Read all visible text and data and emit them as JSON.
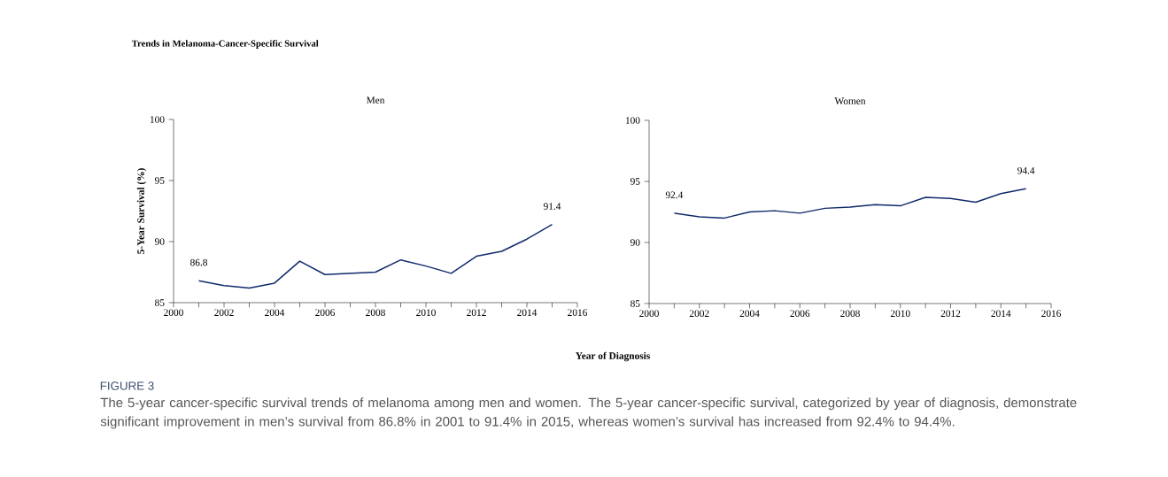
{
  "chart_data": [
    {
      "type": "line",
      "title": "Men",
      "xlabel": "Year of Diagnosis",
      "ylabel": "5-Year Survival (%)",
      "x": [
        2001,
        2002,
        2003,
        2004,
        2005,
        2006,
        2007,
        2008,
        2009,
        2010,
        2011,
        2012,
        2013,
        2014,
        2015
      ],
      "series": [
        {
          "color": "#0f2a6b",
          "values": [
            86.8,
            86.4,
            86.2,
            86.6,
            88.4,
            87.3,
            87.4,
            87.5,
            88.5,
            88.0,
            87.4,
            88.8,
            89.2,
            90.2,
            91.4
          ],
          "value_labels": [
            "86.8",
            null,
            null,
            null,
            null,
            null,
            null,
            null,
            null,
            null,
            null,
            null,
            null,
            null,
            "91.4"
          ]
        }
      ],
      "xlim": [
        2000,
        2016
      ],
      "ylim": [
        85,
        100
      ],
      "xticks": [
        2000,
        {
          "value": 2001,
          "label": null
        },
        2002,
        {
          "value": 2003,
          "label": null
        },
        2004,
        {
          "value": 2005,
          "label": null
        },
        2006,
        {
          "value": 2007,
          "label": null
        },
        2008,
        {
          "value": 2009,
          "label": null
        },
        2010,
        {
          "value": 2011,
          "label": null
        },
        2012,
        {
          "value": 2013,
          "label": null
        },
        2014,
        {
          "value": 2015,
          "label": null
        },
        2016
      ],
      "yticks": [
        85,
        90,
        95,
        100
      ],
      "grid": false,
      "legend": false,
      "marker": "none",
      "line_style": "solid",
      "annotations": [
        "Trends in Melanoma-Cancer-Specific Survival",
        "FIGURE 3",
        "The 5-year cancer-specific survival trends of melanoma among men and women. The 5-year cancer-specific survival, categorized by year of diagnosis, demonstrate significant improvement in men’s survival from 86.8% in 2001 to 91.4% in 2015, whereas women’s survival has increased from 92.4% to 94.4%."
      ]
    },
    {
      "type": "line",
      "title": "Women",
      "x": [
        2001,
        2002,
        2003,
        2004,
        2005,
        2006,
        2007,
        2008,
        2009,
        2010,
        2011,
        2012,
        2013,
        2014,
        2015
      ],
      "series": [
        {
          "color": "#0f2a6b",
          "values": [
            92.4,
            92.1,
            92.0,
            92.5,
            92.6,
            92.4,
            92.8,
            92.9,
            93.1,
            93.0,
            93.7,
            93.6,
            93.3,
            94.0,
            94.4
          ],
          "value_labels": [
            "92.4",
            null,
            null,
            null,
            null,
            null,
            null,
            null,
            null,
            null,
            null,
            null,
            null,
            null,
            "94.4"
          ]
        }
      ],
      "xlim": [
        2000,
        2016
      ],
      "ylim": [
        85,
        100
      ],
      "xticks": [
        2000,
        {
          "value": 2001,
          "label": null
        },
        2002,
        {
          "value": 2003,
          "label": null
        },
        2004,
        {
          "value": 2005,
          "label": null
        },
        2006,
        {
          "value": 2007,
          "label": null
        },
        2008,
        {
          "value": 2009,
          "label": null
        },
        2010,
        {
          "value": 2011,
          "label": null
        },
        2012,
        {
          "value": 2013,
          "label": null
        },
        2014,
        {
          "value": 2015,
          "label": null
        },
        2016
      ],
      "yticks": [
        85,
        90,
        95,
        100
      ],
      "grid": false,
      "legend": false,
      "marker": "none",
      "line_style": "solid"
    }
  ]
}
